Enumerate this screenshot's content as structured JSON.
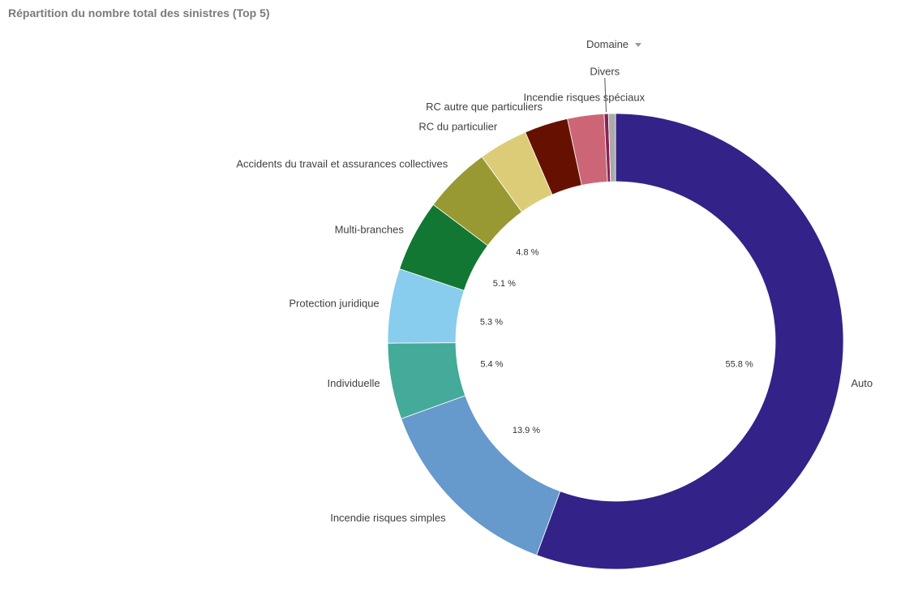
{
  "chart_data": {
    "type": "pie",
    "title": "Répartition du nombre total des sinistres (Top 5)",
    "legend_title": "Domaine",
    "donut": true,
    "slices": [
      {
        "name": "Auto",
        "value": 55.8,
        "label": "55.8 %",
        "color": "#332288"
      },
      {
        "name": "Incendie risques simples",
        "value": 13.9,
        "label": "13.9 %",
        "color": "#6699CC"
      },
      {
        "name": "Individuelle",
        "value": 5.4,
        "label": "5.4 %",
        "color": "#44AA99"
      },
      {
        "name": "Protection juridique",
        "value": 5.3,
        "label": "5.3 %",
        "color": "#88CCEE"
      },
      {
        "name": "Multi-branches",
        "value": 5.1,
        "label": "5.1 %",
        "color": "#117733"
      },
      {
        "name": "Accidents du travail et assurances collectives",
        "value": 4.8,
        "label": "4.8 %",
        "color": "#999933"
      },
      {
        "name": "RC du particulier",
        "value": 3.5,
        "label": "",
        "color": "#DDCC77"
      },
      {
        "name": "RC autre que particuliers",
        "value": 3.1,
        "label": "",
        "color": "#661100"
      },
      {
        "name": "Incendie risques spéciaux",
        "value": 2.6,
        "label": "",
        "color": "#CC6677"
      },
      {
        "name": "Divers",
        "value": 0.3,
        "label": "",
        "color": "#882255"
      },
      {
        "name": "",
        "value": 0.5,
        "label": "",
        "color": "#AAAAAA"
      }
    ]
  }
}
